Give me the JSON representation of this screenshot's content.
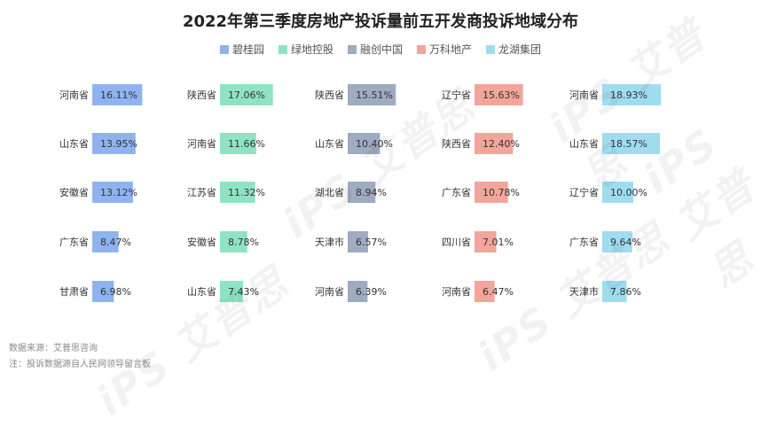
{
  "chart_data": {
    "type": "bar",
    "title": "2022年第三季度房地产投诉量前五开发商投诉地域分布",
    "legend_position": "top-center",
    "xlim": [
      0,
      20
    ],
    "series": [
      {
        "name": "碧桂园",
        "color": "#8fb3ef",
        "entries": [
          {
            "region": "河南省",
            "value": 16.11,
            "label": "16.11%"
          },
          {
            "region": "山东省",
            "value": 13.95,
            "label": "13.95%"
          },
          {
            "region": "安徽省",
            "value": 13.12,
            "label": "13.12%"
          },
          {
            "region": "广东省",
            "value": 8.47,
            "label": "8.47%"
          },
          {
            "region": "甘肃省",
            "value": 6.98,
            "label": "6.98%"
          }
        ]
      },
      {
        "name": "绿地控股",
        "color": "#8fe3c3",
        "entries": [
          {
            "region": "陕西省",
            "value": 17.06,
            "label": "17.06%"
          },
          {
            "region": "河南省",
            "value": 11.66,
            "label": "11.66%"
          },
          {
            "region": "江苏省",
            "value": 11.32,
            "label": "11.32%"
          },
          {
            "region": "安徽省",
            "value": 8.78,
            "label": "8.78%"
          },
          {
            "region": "山东省",
            "value": 7.43,
            "label": "7.43%"
          }
        ]
      },
      {
        "name": "融创中国",
        "color": "#9eabc0",
        "entries": [
          {
            "region": "陕西省",
            "value": 15.51,
            "label": "15.51%"
          },
          {
            "region": "山东省",
            "value": 10.4,
            "label": "10.40%"
          },
          {
            "region": "湖北省",
            "value": 8.94,
            "label": "8.94%"
          },
          {
            "region": "天津市",
            "value": 6.57,
            "label": "6.57%"
          },
          {
            "region": "河南省",
            "value": 6.39,
            "label": "6.39%"
          }
        ]
      },
      {
        "name": "万科地产",
        "color": "#f2a59a",
        "entries": [
          {
            "region": "辽宁省",
            "value": 15.63,
            "label": "15.63%"
          },
          {
            "region": "陕西省",
            "value": 12.4,
            "label": "12.40%"
          },
          {
            "region": "广东省",
            "value": 10.78,
            "label": "10.78%"
          },
          {
            "region": "四川省",
            "value": 7.01,
            "label": "7.01%"
          },
          {
            "region": "河南省",
            "value": 6.47,
            "label": "6.47%"
          }
        ]
      },
      {
        "name": "龙湖集团",
        "color": "#9fdcef",
        "entries": [
          {
            "region": "河南省",
            "value": 18.93,
            "label": "18.93%"
          },
          {
            "region": "山东省",
            "value": 18.57,
            "label": "18.57%"
          },
          {
            "region": "辽宁省",
            "value": 10.0,
            "label": "10.00%"
          },
          {
            "region": "广东省",
            "value": 9.64,
            "label": "9.64%"
          },
          {
            "region": "天津市",
            "value": 7.86,
            "label": "7.86%"
          }
        ]
      }
    ]
  },
  "footer": {
    "source": "数据来源：艾普思咨询",
    "note": "注：投诉数据源自人民网领导留言板"
  },
  "watermark": {
    "text": "iPS 艾普思"
  }
}
